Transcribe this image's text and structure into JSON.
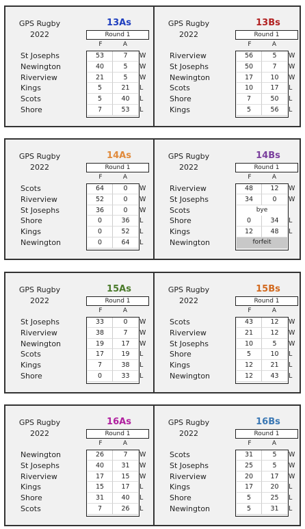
{
  "common": {
    "line1": "GPS Rugby",
    "line2": "2022",
    "round": "Round 1",
    "f": "F",
    "a": "A"
  },
  "colors": {
    "13As": "#1f3fbf",
    "13Bs": "#b22222",
    "14As": "#e08a3c",
    "14Bs": "#7a3f9d",
    "15As": "#4a7a2a",
    "15Bs": "#d2691e",
    "16As": "#b0209f",
    "16Bs": "#3b78b4",
    "forfeit_bg": "#c8c8c8"
  },
  "blocks": [
    {
      "left": {
        "team": "13As",
        "rows": [
          {
            "name": "St Josephs",
            "f": "53",
            "a": "7",
            "r": "W"
          },
          {
            "name": "Newington",
            "f": "40",
            "a": "5",
            "r": "W"
          },
          {
            "name": "Riverview",
            "f": "21",
            "a": "5",
            "r": "W"
          },
          {
            "name": "Kings",
            "f": "5",
            "a": "21",
            "r": "L"
          },
          {
            "name": "Scots",
            "f": "5",
            "a": "40",
            "r": "L"
          },
          {
            "name": "Shore",
            "f": "7",
            "a": "53",
            "r": "L"
          }
        ]
      },
      "right": {
        "team": "13Bs",
        "rows": [
          {
            "name": "Riverview",
            "f": "56",
            "a": "5",
            "r": "W"
          },
          {
            "name": "St Josephs",
            "f": "50",
            "a": "7",
            "r": "W"
          },
          {
            "name": "Newington",
            "f": "17",
            "a": "10",
            "r": "W"
          },
          {
            "name": "Scots",
            "f": "10",
            "a": "17",
            "r": "L"
          },
          {
            "name": "Shore",
            "f": "7",
            "a": "50",
            "r": "L"
          },
          {
            "name": "Kings",
            "f": "5",
            "a": "56",
            "r": "L"
          }
        ]
      }
    },
    {
      "left": {
        "team": "14As",
        "rows": [
          {
            "name": "Scots",
            "f": "64",
            "a": "0",
            "r": "W"
          },
          {
            "name": "Riverview",
            "f": "52",
            "a": "0",
            "r": "W"
          },
          {
            "name": "St Josephs",
            "f": "36",
            "a": "0",
            "r": "W"
          },
          {
            "name": "Shore",
            "f": "0",
            "a": "36",
            "r": "L"
          },
          {
            "name": "Kings",
            "f": "0",
            "a": "52",
            "r": "L"
          },
          {
            "name": "Newington",
            "f": "0",
            "a": "64",
            "r": "L"
          }
        ]
      },
      "right": {
        "team": "14Bs",
        "rows": [
          {
            "name": "Riverview",
            "f": "48",
            "a": "12",
            "r": "W"
          },
          {
            "name": "St Josephs",
            "f": "34",
            "a": "0",
            "r": "W"
          },
          {
            "name": "Scots",
            "special": "bye",
            "r": ""
          },
          {
            "name": "Shore",
            "f": "0",
            "a": "34",
            "r": "L"
          },
          {
            "name": "Kings",
            "f": "12",
            "a": "48",
            "r": "L"
          },
          {
            "name": "Newington",
            "special": "forfeit",
            "r": ""
          }
        ]
      }
    },
    {
      "left": {
        "team": "15As",
        "rows": [
          {
            "name": "St Josephs",
            "f": "33",
            "a": "0",
            "r": "W"
          },
          {
            "name": "Riverview",
            "f": "38",
            "a": "7",
            "r": "W"
          },
          {
            "name": "Newington",
            "f": "19",
            "a": "17",
            "r": "W"
          },
          {
            "name": "Scots",
            "f": "17",
            "a": "19",
            "r": "L"
          },
          {
            "name": "Kings",
            "f": "7",
            "a": "38",
            "r": "L"
          },
          {
            "name": "Shore",
            "f": "0",
            "a": "33",
            "r": "L"
          }
        ]
      },
      "right": {
        "team": "15Bs",
        "rows": [
          {
            "name": "Scots",
            "f": "43",
            "a": "12",
            "r": "W"
          },
          {
            "name": "Riverview",
            "f": "21",
            "a": "12",
            "r": "W"
          },
          {
            "name": "St Josephs",
            "f": "10",
            "a": "5",
            "r": "W"
          },
          {
            "name": "Shore",
            "f": "5",
            "a": "10",
            "r": "L"
          },
          {
            "name": "Kings",
            "f": "12",
            "a": "21",
            "r": "L"
          },
          {
            "name": "Newington",
            "f": "12",
            "a": "43",
            "r": "L"
          }
        ]
      }
    },
    {
      "left": {
        "team": "16As",
        "rows": [
          {
            "name": "Newington",
            "f": "26",
            "a": "7",
            "r": "W"
          },
          {
            "name": "St Josephs",
            "f": "40",
            "a": "31",
            "r": "W"
          },
          {
            "name": "Riverview",
            "f": "17",
            "a": "15",
            "r": "W"
          },
          {
            "name": "Kings",
            "f": "15",
            "a": "17",
            "r": "L"
          },
          {
            "name": "Shore",
            "f": "31",
            "a": "40",
            "r": "L"
          },
          {
            "name": "Scots",
            "f": "7",
            "a": "26",
            "r": "L"
          }
        ]
      },
      "right": {
        "team": "16Bs",
        "rows": [
          {
            "name": "Scots",
            "f": "31",
            "a": "5",
            "r": "W"
          },
          {
            "name": "St Josephs",
            "f": "25",
            "a": "5",
            "r": "W"
          },
          {
            "name": "Riverview",
            "f": "20",
            "a": "17",
            "r": "W"
          },
          {
            "name": "Kings",
            "f": "17",
            "a": "20",
            "r": "L"
          },
          {
            "name": "Shore",
            "f": "5",
            "a": "25",
            "r": "L"
          },
          {
            "name": "Newington",
            "f": "5",
            "a": "31",
            "r": "L"
          }
        ]
      }
    }
  ]
}
